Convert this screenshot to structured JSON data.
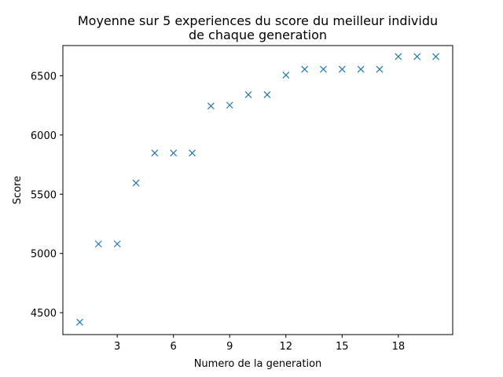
{
  "chart_data": {
    "type": "scatter",
    "title_lines": [
      "Moyenne sur 5 experiences du score du meilleur individu",
      "de chaque generation"
    ],
    "xlabel": "Numero de la generation",
    "ylabel": "Score",
    "xlim": [
      0.1,
      20.9
    ],
    "ylim": [
      4315,
      6755
    ],
    "x_ticks": [
      3,
      6,
      9,
      12,
      15,
      18
    ],
    "y_ticks": [
      4500,
      5000,
      5500,
      6000,
      6500
    ],
    "grid": false,
    "marker": "x",
    "color": "#1f77b4",
    "series": [
      {
        "x": [
          1,
          2,
          3,
          4,
          5,
          6,
          7,
          8,
          9,
          10,
          11,
          12,
          13,
          14,
          15,
          16,
          17,
          18,
          19,
          20
        ],
        "y": [
          4420,
          5080,
          5080,
          5595,
          5848,
          5848,
          5848,
          6245,
          6252,
          6340,
          6340,
          6505,
          6555,
          6555,
          6555,
          6555,
          6555,
          6662,
          6662,
          6662
        ]
      }
    ]
  }
}
